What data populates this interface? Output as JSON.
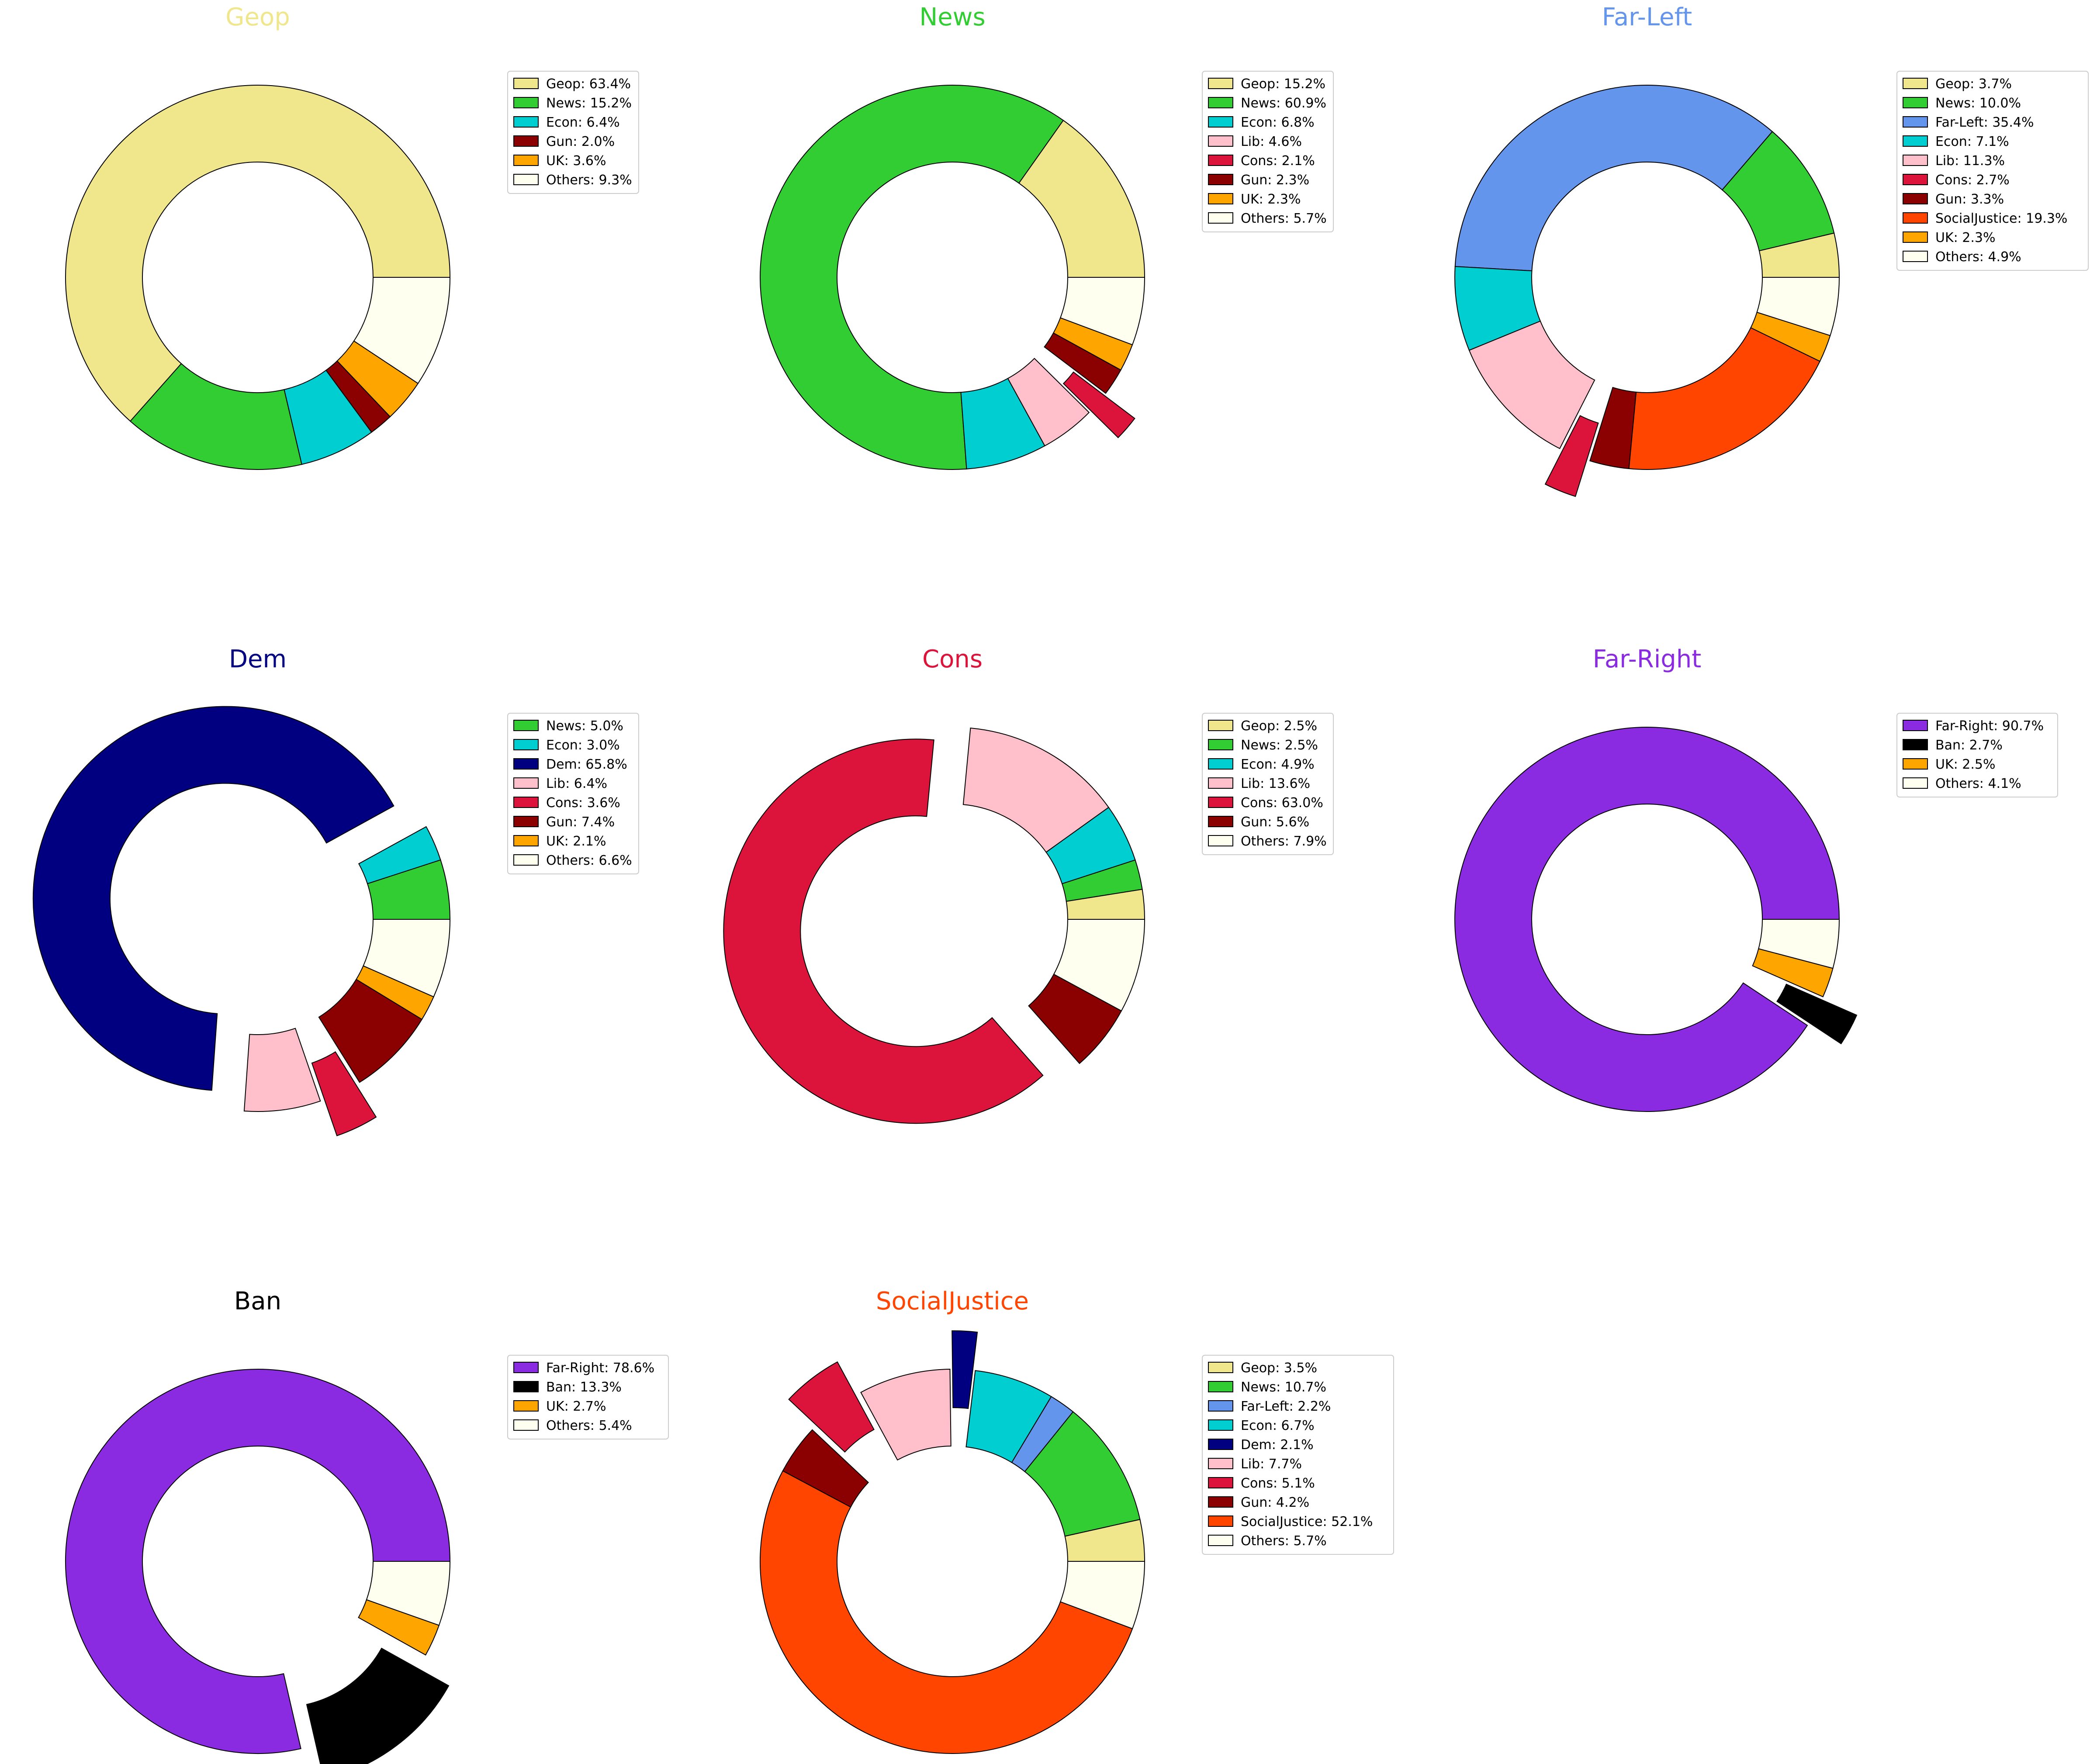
{
  "figure": {
    "layout": "3x3 grid of donut charts"
  },
  "chart_data": [
    {
      "type": "pie",
      "title": "Geop",
      "title_color": "#F0E68C",
      "slices": [
        {
          "label": "Geop",
          "value": 63.4,
          "color": "#F0E68C",
          "explode": false
        },
        {
          "label": "News",
          "value": 15.2,
          "color": "#32CD32",
          "explode": false
        },
        {
          "label": "Econ",
          "value": 6.4,
          "color": "#00CED1",
          "explode": false
        },
        {
          "label": "Gun",
          "value": 2.0,
          "color": "#8B0000",
          "explode": false
        },
        {
          "label": "UK",
          "value": 3.6,
          "color": "#FFA500",
          "explode": false
        },
        {
          "label": "Others",
          "value": 9.3,
          "color": "#FFFFF0",
          "explode": false
        }
      ],
      "legend": [
        "Geop: 63.4%",
        "News: 15.2%",
        "Econ: 6.4%",
        "Gun: 2.0%",
        "UK: 3.6%",
        "Others: 9.3%"
      ],
      "legend_position": "right"
    },
    {
      "type": "pie",
      "title": "News",
      "title_color": "#32CD32",
      "slices": [
        {
          "label": "Geop",
          "value": 15.2,
          "color": "#F0E68C",
          "explode": false
        },
        {
          "label": "News",
          "value": 60.9,
          "color": "#32CD32",
          "explode": false
        },
        {
          "label": "Econ",
          "value": 6.8,
          "color": "#00CED1",
          "explode": false
        },
        {
          "label": "Lib",
          "value": 4.6,
          "color": "#FFC0CB",
          "explode": false
        },
        {
          "label": "Cons",
          "value": 2.1,
          "color": "#DC143C",
          "explode": true
        },
        {
          "label": "Gun",
          "value": 2.3,
          "color": "#8B0000",
          "explode": false
        },
        {
          "label": "UK",
          "value": 2.3,
          "color": "#FFA500",
          "explode": false
        },
        {
          "label": "Others",
          "value": 5.7,
          "color": "#FFFFF0",
          "explode": false
        }
      ],
      "legend": [
        "Geop: 15.2%",
        "News: 60.9%",
        "Econ: 6.8%",
        "Lib: 4.6%",
        "Cons: 2.1%",
        "Gun: 2.3%",
        "UK: 2.3%",
        "Others: 5.7%"
      ],
      "legend_position": "right"
    },
    {
      "type": "pie",
      "title": "Far-Left",
      "title_color": "#6495ED",
      "slices": [
        {
          "label": "Geop",
          "value": 3.7,
          "color": "#F0E68C",
          "explode": false
        },
        {
          "label": "News",
          "value": 10.0,
          "color": "#32CD32",
          "explode": false
        },
        {
          "label": "Far-Left",
          "value": 35.4,
          "color": "#6495ED",
          "explode": false
        },
        {
          "label": "Econ",
          "value": 7.1,
          "color": "#00CED1",
          "explode": false
        },
        {
          "label": "Lib",
          "value": 11.3,
          "color": "#FFC0CB",
          "explode": false
        },
        {
          "label": "Cons",
          "value": 2.7,
          "color": "#DC143C",
          "explode": true
        },
        {
          "label": "Gun",
          "value": 3.3,
          "color": "#8B0000",
          "explode": false
        },
        {
          "label": "SocialJustice",
          "value": 19.3,
          "color": "#FF4500",
          "explode": false
        },
        {
          "label": "UK",
          "value": 2.3,
          "color": "#FFA500",
          "explode": false
        },
        {
          "label": "Others",
          "value": 4.9,
          "color": "#FFFFF0",
          "explode": false
        }
      ],
      "legend": [
        "Geop: 3.7%",
        "News: 10.0%",
        "Far-Left: 35.4%",
        "Econ: 7.1%",
        "Lib: 11.3%",
        "Cons: 2.7%",
        "Gun: 3.3%",
        "SocialJustice: 19.3%",
        "UK: 2.3%",
        "Others: 4.9%"
      ],
      "legend_position": "right"
    },
    {
      "type": "pie",
      "title": "Dem",
      "title_color": "#000080",
      "slices": [
        {
          "label": "News",
          "value": 5.0,
          "color": "#32CD32",
          "explode": false
        },
        {
          "label": "Econ",
          "value": 3.0,
          "color": "#00CED1",
          "explode": false
        },
        {
          "label": "Dem",
          "value": 65.8,
          "color": "#000080",
          "explode": true
        },
        {
          "label": "Lib",
          "value": 6.4,
          "color": "#FFC0CB",
          "explode": false
        },
        {
          "label": "Cons",
          "value": 3.6,
          "color": "#DC143C",
          "explode": true
        },
        {
          "label": "Gun",
          "value": 7.4,
          "color": "#8B0000",
          "explode": false
        },
        {
          "label": "UK",
          "value": 2.1,
          "color": "#FFA500",
          "explode": false
        },
        {
          "label": "Others",
          "value": 6.6,
          "color": "#FFFFF0",
          "explode": false
        }
      ],
      "legend": [
        "News: 5.0%",
        "Econ: 3.0%",
        "Dem: 65.8%",
        "Lib: 6.4%",
        "Cons: 3.6%",
        "Gun: 7.4%",
        "UK: 2.1%",
        "Others: 6.6%"
      ],
      "legend_position": "right"
    },
    {
      "type": "pie",
      "title": "Cons",
      "title_color": "#DC143C",
      "slices": [
        {
          "label": "Geop",
          "value": 2.5,
          "color": "#F0E68C",
          "explode": false
        },
        {
          "label": "News",
          "value": 2.5,
          "color": "#32CD32",
          "explode": false
        },
        {
          "label": "Econ",
          "value": 4.9,
          "color": "#00CED1",
          "explode": false
        },
        {
          "label": "Lib",
          "value": 13.6,
          "color": "#FFC0CB",
          "explode": false
        },
        {
          "label": "Cons",
          "value": 63.0,
          "color": "#DC143C",
          "explode": true
        },
        {
          "label": "Gun",
          "value": 5.6,
          "color": "#8B0000",
          "explode": false
        },
        {
          "label": "Others",
          "value": 7.9,
          "color": "#FFFFF0",
          "explode": false
        }
      ],
      "legend": [
        "Geop: 2.5%",
        "News: 2.5%",
        "Econ: 4.9%",
        "Lib: 13.6%",
        "Cons: 63.0%",
        "Gun: 5.6%",
        "Others: 7.9%"
      ],
      "legend_position": "right"
    },
    {
      "type": "pie",
      "title": "Far-Right",
      "title_color": "#8A2BE2",
      "slices": [
        {
          "label": "Far-Right",
          "value": 90.7,
          "color": "#8A2BE2",
          "explode": false
        },
        {
          "label": "Ban",
          "value": 2.7,
          "color": "#000000",
          "explode": true
        },
        {
          "label": "UK",
          "value": 2.5,
          "color": "#FFA500",
          "explode": false
        },
        {
          "label": "Others",
          "value": 4.1,
          "color": "#FFFFF0",
          "explode": false
        }
      ],
      "legend": [
        "Far-Right: 90.7%",
        "Ban: 2.7%",
        "UK: 2.5%",
        "Others: 4.1%"
      ],
      "legend_position": "right"
    },
    {
      "type": "pie",
      "title": "Ban",
      "title_color": "#000000",
      "slices": [
        {
          "label": "Far-Right",
          "value": 78.6,
          "color": "#8A2BE2",
          "explode": false
        },
        {
          "label": "Ban",
          "value": 13.3,
          "color": "#000000",
          "explode": true
        },
        {
          "label": "UK",
          "value": 2.7,
          "color": "#FFA500",
          "explode": false
        },
        {
          "label": "Others",
          "value": 5.4,
          "color": "#FFFFF0",
          "explode": false
        }
      ],
      "legend": [
        "Far-Right: 78.6%",
        "Ban: 13.3%",
        "UK: 2.7%",
        "Others: 5.4%"
      ],
      "legend_position": "right"
    },
    {
      "type": "pie",
      "title": "SocialJustice",
      "title_color": "#FF4500",
      "slices": [
        {
          "label": "Geop",
          "value": 3.5,
          "color": "#F0E68C",
          "explode": false
        },
        {
          "label": "News",
          "value": 10.7,
          "color": "#32CD32",
          "explode": false
        },
        {
          "label": "Far-Left",
          "value": 2.2,
          "color": "#6495ED",
          "explode": false
        },
        {
          "label": "Econ",
          "value": 6.7,
          "color": "#00CED1",
          "explode": false
        },
        {
          "label": "Dem",
          "value": 2.1,
          "color": "#000080",
          "explode": true
        },
        {
          "label": "Lib",
          "value": 7.7,
          "color": "#FFC0CB",
          "explode": false
        },
        {
          "label": "Cons",
          "value": 5.1,
          "color": "#DC143C",
          "explode": true
        },
        {
          "label": "Gun",
          "value": 4.2,
          "color": "#8B0000",
          "explode": false
        },
        {
          "label": "SocialJustice",
          "value": 52.1,
          "color": "#FF4500",
          "explode": false
        },
        {
          "label": "Others",
          "value": 5.7,
          "color": "#FFFFF0",
          "explode": false
        }
      ],
      "legend": [
        "Geop: 3.5%",
        "News: 10.7%",
        "Far-Left: 2.2%",
        "Econ: 6.7%",
        "Dem: 2.1%",
        "Lib: 7.7%",
        "Cons: 5.1%",
        "Gun: 4.2%",
        "SocialJustice: 52.1%",
        "Others: 5.7%"
      ],
      "legend_position": "right"
    }
  ]
}
